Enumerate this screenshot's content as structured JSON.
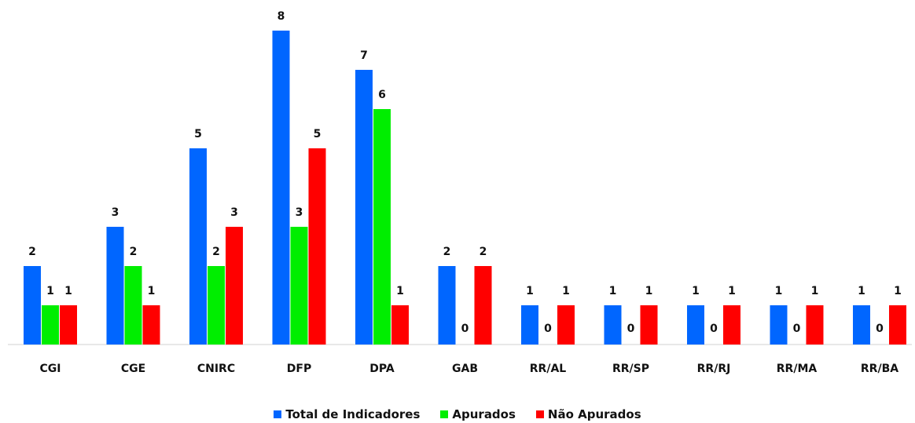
{
  "chart_data": {
    "type": "bar",
    "categories": [
      "CGI",
      "CGE",
      "CNIRC",
      "DFP",
      "DPA",
      "GAB",
      "RR/AL",
      "RR/SP",
      "RR/RJ",
      "RR/MA",
      "RR/BA"
    ],
    "series": [
      {
        "name": "Total de Indicadores",
        "color": "#0066ff",
        "values": [
          2,
          3,
          5,
          8,
          7,
          2,
          1,
          1,
          1,
          1,
          1
        ]
      },
      {
        "name": "Apurados",
        "color": "#00ee00",
        "values": [
          1,
          2,
          2,
          3,
          6,
          0,
          0,
          0,
          0,
          0,
          0
        ]
      },
      {
        "name": "Não Apurados",
        "color": "#ff0000",
        "values": [
          1,
          1,
          3,
          5,
          1,
          2,
          1,
          1,
          1,
          1,
          1
        ]
      }
    ],
    "ylim": [
      0,
      8
    ],
    "grid": false,
    "legend_position": "bottom"
  }
}
